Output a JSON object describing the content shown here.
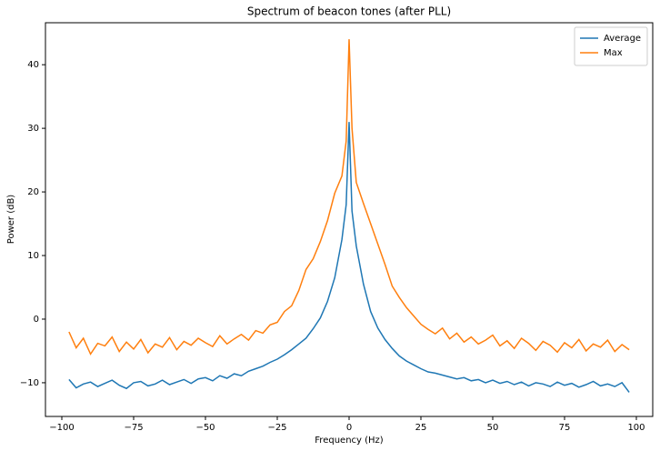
{
  "chart_data": {
    "type": "line",
    "title": "Spectrum of beacon tones (after PLL)",
    "x_label": "Frequency (Hz)",
    "y_label": "Power (dB)",
    "x": [
      -97.5,
      -95,
      -92.5,
      -90,
      -87.5,
      -85,
      -82.5,
      -80,
      -77.5,
      -75,
      -72.5,
      -70,
      -67.5,
      -65,
      -62.5,
      -60,
      -57.5,
      -55,
      -52.5,
      -50,
      -47.5,
      -45,
      -42.5,
      -40,
      -37.5,
      -35,
      -32.5,
      -30,
      -27.5,
      -25,
      -22.5,
      -20,
      -17.5,
      -15,
      -12.5,
      -10,
      -7.5,
      -5,
      -2.5,
      -1,
      0,
      1,
      2.5,
      5,
      7.5,
      10,
      12.5,
      15,
      17.5,
      20,
      22.5,
      25,
      27.5,
      30,
      32.5,
      35,
      37.5,
      40,
      42.5,
      45,
      47.5,
      50,
      52.5,
      55,
      57.5,
      60,
      62.5,
      65,
      67.5,
      70,
      72.5,
      75,
      77.5,
      80,
      82.5,
      85,
      87.5,
      90,
      92.5,
      95,
      97.5
    ],
    "series": [
      {
        "name": "Average",
        "color": "#1f77b4",
        "values": [
          -9.5,
          -10.8,
          -10.2,
          -9.9,
          -10.6,
          -10.1,
          -9.6,
          -10.4,
          -10.9,
          -10.0,
          -9.8,
          -10.5,
          -10.2,
          -9.6,
          -10.3,
          -9.9,
          -9.5,
          -10.1,
          -9.4,
          -9.2,
          -9.7,
          -8.9,
          -9.3,
          -8.6,
          -8.9,
          -8.2,
          -7.8,
          -7.4,
          -6.8,
          -6.3,
          -5.6,
          -4.8,
          -3.9,
          -3.0,
          -1.5,
          0.2,
          2.8,
          6.5,
          12.5,
          18,
          31,
          17,
          11.5,
          5.5,
          1.2,
          -1.4,
          -3.2,
          -4.6,
          -5.8,
          -6.6,
          -7.2,
          -7.8,
          -8.3,
          -8.5,
          -8.8,
          -9.1,
          -9.4,
          -9.2,
          -9.7,
          -9.5,
          -10.0,
          -9.6,
          -10.1,
          -9.8,
          -10.3,
          -9.9,
          -10.5,
          -10.0,
          -10.2,
          -10.6,
          -9.9,
          -10.4,
          -10.1,
          -10.7,
          -10.3,
          -9.8,
          -10.5,
          -10.2,
          -10.6,
          -10.0,
          -11.5
        ]
      },
      {
        "name": "Max",
        "color": "#ff7f0e",
        "values": [
          -2,
          -4.5,
          -3,
          -5.5,
          -3.8,
          -4.2,
          -2.8,
          -5.1,
          -3.6,
          -4.7,
          -3.2,
          -5.3,
          -3.9,
          -4.4,
          -2.9,
          -4.8,
          -3.5,
          -4.1,
          -3.0,
          -3.7,
          -4.3,
          -2.6,
          -3.9,
          -3.1,
          -2.4,
          -3.3,
          -1.8,
          -2.2,
          -0.9,
          -0.5,
          1.2,
          2.1,
          4.5,
          7.8,
          9.5,
          12.2,
          15.5,
          19.8,
          22.5,
          28,
          44,
          30,
          21.5,
          18.2,
          15.0,
          11.8,
          8.6,
          5.2,
          3.4,
          1.8,
          0.5,
          -0.8,
          -1.6,
          -2.3,
          -1.4,
          -3.1,
          -2.2,
          -3.6,
          -2.8,
          -3.9,
          -3.3,
          -2.5,
          -4.2,
          -3.4,
          -4.6,
          -3.0,
          -3.8,
          -4.9,
          -3.5,
          -4.1,
          -5.2,
          -3.7,
          -4.5,
          -3.2,
          -5.0,
          -3.9,
          -4.4,
          -3.3,
          -5.1,
          -4.0,
          -4.8
        ]
      }
    ],
    "xlim": [
      -105.7,
      105.7
    ],
    "ylim": [
      -15.3,
      46.6
    ],
    "xticks": [
      {
        "value": -100,
        "label": "−100"
      },
      {
        "value": -75,
        "label": "−75"
      },
      {
        "value": -50,
        "label": "−50"
      },
      {
        "value": -25,
        "label": "−25"
      },
      0,
      25,
      50,
      75,
      100
    ],
    "yticks": [
      {
        "value": -10,
        "label": "−10"
      },
      0,
      10,
      20,
      30,
      40
    ],
    "legend": "upper right"
  }
}
